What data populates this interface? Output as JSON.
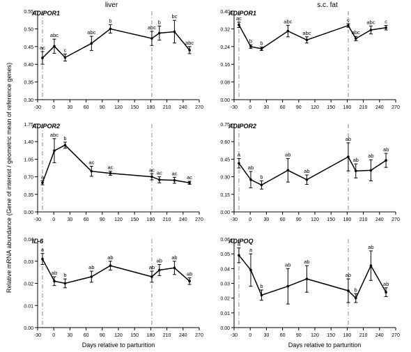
{
  "figure": {
    "column_titles": [
      "liver",
      "s.c. fat"
    ],
    "ylabel": "Relative mRNA abundance (Gene of interest / geometric mean of reference genes)",
    "xlabel": "Days relative to parturition",
    "reference_days": [
      -21,
      182
    ]
  },
  "chart_data": [
    {
      "type": "line",
      "column": 0,
      "row": 0,
      "title": "ADIPOR1",
      "x": [
        -21,
        1,
        21,
        70,
        105,
        182,
        196,
        224,
        252
      ],
      "y": [
        0.418,
        0.451,
        0.419,
        0.459,
        0.5,
        0.473,
        0.488,
        0.492,
        0.44
      ],
      "err": [
        0.018,
        0.02,
        0.01,
        0.02,
        0.012,
        0.02,
        0.02,
        0.032,
        0.01
      ],
      "letters": [
        "ac",
        "abc",
        "c",
        "abc",
        "b",
        "abc",
        "b",
        "bc",
        "abc"
      ],
      "xlim": [
        -30,
        270
      ],
      "xticks": [
        -30,
        0,
        30,
        60,
        90,
        120,
        150,
        180,
        210,
        240,
        270
      ],
      "ylim": [
        0.3,
        0.55
      ],
      "yticks": [
        "0.30",
        "0.35",
        "0.40",
        "0.45",
        "0.50",
        "0.55"
      ]
    },
    {
      "type": "line",
      "column": 1,
      "row": 0,
      "title": "ADIPOR1",
      "x": [
        -21,
        1,
        21,
        70,
        105,
        182,
        196,
        224,
        252
      ],
      "y": [
        0.338,
        0.24,
        0.23,
        0.31,
        0.27,
        0.335,
        0.276,
        0.315,
        0.325
      ],
      "err": [
        0.012,
        0.008,
        0.008,
        0.026,
        0.014,
        0.008,
        0.01,
        0.018,
        0.01
      ],
      "letters": [
        "ac",
        "b",
        "b",
        "abc",
        "abc",
        "c",
        "abc",
        "abc",
        "c"
      ],
      "xlim": [
        -30,
        270
      ],
      "xticks": [
        -30,
        0,
        30,
        60,
        90,
        120,
        150,
        180,
        210,
        240,
        270
      ],
      "ylim": [
        0.0,
        0.4
      ],
      "yticks": [
        "0.00",
        "0.08",
        "0.16",
        "0.24",
        "0.32",
        "0.40"
      ]
    },
    {
      "type": "line",
      "column": 0,
      "row": 1,
      "title": "ADIPOR2",
      "x": [
        -21,
        1,
        21,
        70,
        105,
        182,
        196,
        224,
        252
      ],
      "y": [
        0.58,
        1.22,
        1.33,
        0.81,
        0.77,
        0.7,
        0.64,
        0.63,
        0.58
      ],
      "err": [
        0.04,
        0.24,
        0.06,
        0.1,
        0.04,
        0.06,
        0.06,
        0.06,
        0.03
      ],
      "letters": [
        "a",
        "abc",
        "b",
        "ac",
        "ac",
        "ac",
        "ac",
        "ac",
        "ac"
      ],
      "xlim": [
        -30,
        270
      ],
      "xticks": [
        -30,
        0,
        30,
        60,
        90,
        120,
        150,
        180,
        210,
        240,
        270
      ],
      "ylim": [
        0.0,
        1.75
      ],
      "yticks": [
        "0.00",
        "0.35",
        "0.70",
        "1.05",
        "1.40",
        "1.75"
      ]
    },
    {
      "type": "line",
      "column": 1,
      "row": 1,
      "title": "ADIPOR2",
      "x": [
        -21,
        1,
        21,
        70,
        105,
        182,
        196,
        224,
        252
      ],
      "y": [
        0.415,
        0.275,
        0.23,
        0.355,
        0.275,
        0.47,
        0.35,
        0.355,
        0.44
      ],
      "err": [
        0.04,
        0.07,
        0.035,
        0.1,
        0.04,
        0.12,
        0.06,
        0.09,
        0.06
      ],
      "letters": [
        "a",
        "ab",
        "b",
        "ab",
        "ab",
        "ab",
        "ab",
        "ab",
        "ab"
      ],
      "xlim": [
        -30,
        270
      ],
      "xticks": [
        -30,
        0,
        30,
        60,
        90,
        120,
        150,
        180,
        210,
        240,
        270
      ],
      "ylim": [
        0.0,
        0.75
      ],
      "yticks": [
        "0.00",
        "0.15",
        "0.30",
        "0.45",
        "0.60",
        "0.75"
      ]
    },
    {
      "type": "line",
      "column": 0,
      "row": 2,
      "title": "IL-6",
      "x": [
        -21,
        1,
        21,
        70,
        105,
        182,
        196,
        224,
        252
      ],
      "y": [
        0.031,
        0.021,
        0.02,
        0.023,
        0.028,
        0.023,
        0.026,
        0.027,
        0.021
      ],
      "err": [
        0.0025,
        0.002,
        0.002,
        0.0025,
        0.002,
        0.0025,
        0.0025,
        0.003,
        0.0015
      ],
      "letters": [
        "a",
        "ab",
        "b",
        "ab",
        "ab",
        "ab",
        "ab",
        "ab",
        "ab"
      ],
      "xlim": [
        -30,
        270
      ],
      "xticks": [
        -30,
        0,
        30,
        60,
        90,
        120,
        150,
        180,
        210,
        240,
        270
      ],
      "ylim": [
        0.0,
        0.04
      ],
      "yticks": [
        "0.00",
        "0.01",
        "0.02",
        "0.03",
        "0.04"
      ]
    },
    {
      "type": "line",
      "column": 1,
      "row": 2,
      "title": "ADIPOQ",
      "x": [
        -21,
        1,
        21,
        70,
        105,
        182,
        196,
        224,
        252
      ],
      "y": [
        0.049,
        0.039,
        0.022,
        0.028,
        0.033,
        0.025,
        0.02,
        0.042,
        0.024
      ],
      "err": [
        0.005,
        0.011,
        0.0035,
        0.012,
        0.009,
        0.008,
        0.003,
        0.01,
        0.003
      ],
      "letters": [
        "a",
        "a",
        "b",
        "ab",
        "ab",
        "ab",
        "b",
        "ab",
        "ab"
      ],
      "xlim": [
        -30,
        270
      ],
      "xticks": [
        -30,
        0,
        30,
        60,
        90,
        120,
        150,
        180,
        210,
        240,
        270
      ],
      "ylim": [
        0.0,
        0.06
      ],
      "yticks": [
        "0.00",
        "0.01",
        "0.02",
        "0.03",
        "0.04",
        "0.05",
        "0.06"
      ]
    }
  ]
}
